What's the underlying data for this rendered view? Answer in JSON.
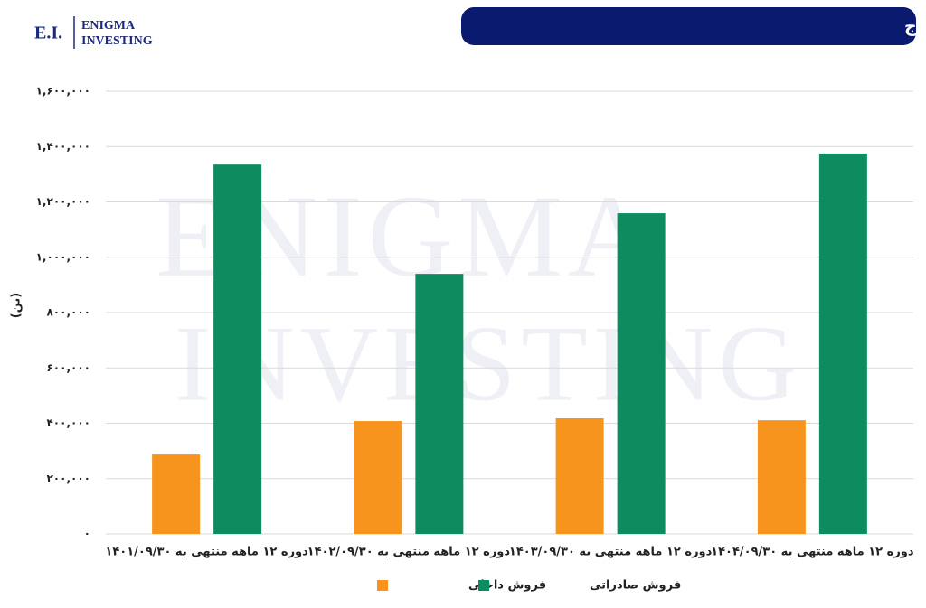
{
  "logo": {
    "mark": "E.I.",
    "line1": "ENIGMA",
    "line2": "INVESTING"
  },
  "watermark": {
    "line1": "ENIGMA",
    "line2": "INVESTING"
  },
  "chart_data": {
    "type": "bar",
    "title": "مقایسه مقدار فروش داخلی و صادراتی ساروج",
    "y_label": "(تن)",
    "categories": [
      "دوره ۱۲ ماهه منتهی به ۱۴۰۱/۰۹/۳۰",
      "دوره ۱۲ ماهه منتهی به ۱۴۰۲/۰۹/۳۰",
      "دوره ۱۲ ماهه منتهی به ۱۴۰۳/۰۹/۳۰",
      "دوره ۱۲ ماهه منتهی به ۱۴۰۴/۰۹/۳۰"
    ],
    "series": [
      {
        "name": "فروش داخلی",
        "color": "#f7941d",
        "values": [
          287000,
          408000,
          418000,
          411000
        ]
      },
      {
        "name": "فروش صادراتی",
        "color": "#0e8c5f",
        "values": [
          1335000,
          940000,
          1159000,
          1375000
        ]
      }
    ],
    "ylim": [
      0,
      1600000
    ],
    "yticks": [
      {
        "value": 0,
        "label": "۰"
      },
      {
        "value": 200000,
        "label": "۲۰۰,۰۰۰"
      },
      {
        "value": 400000,
        "label": "۴۰۰,۰۰۰"
      },
      {
        "value": 600000,
        "label": "۶۰۰,۰۰۰"
      },
      {
        "value": 800000,
        "label": "۸۰۰,۰۰۰"
      },
      {
        "value": 1000000,
        "label": "۱,۰۰۰,۰۰۰"
      },
      {
        "value": 1200000,
        "label": "۱,۲۰۰,۰۰۰"
      },
      {
        "value": 1400000,
        "label": "۱,۴۰۰,۰۰۰"
      },
      {
        "value": 1600000,
        "label": "۱,۶۰۰,۰۰۰"
      }
    ],
    "grid": true
  }
}
